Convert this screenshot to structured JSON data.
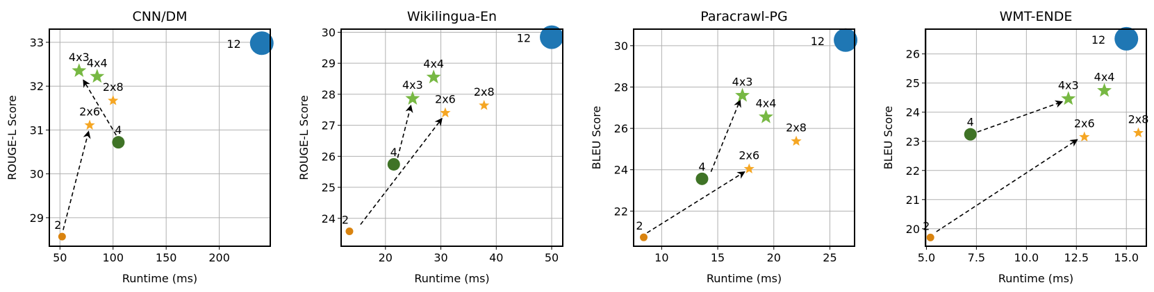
{
  "chart_data": [
    {
      "type": "scatter",
      "title": "CNN/DM",
      "xlabel": "Runtime (ms)",
      "ylabel": "ROUGE-L Score",
      "xlim": [
        40,
        248
      ],
      "ylim": [
        28.35,
        33.3
      ],
      "xticks": [
        50,
        100,
        150,
        200
      ],
      "yticks": [
        29,
        30,
        31,
        32,
        33
      ],
      "grid": true,
      "points": [
        {
          "label": "2",
          "x": 52,
          "y": 28.57,
          "kind": "dot-small"
        },
        {
          "label": "4",
          "x": 105,
          "y": 30.72,
          "kind": "dot-medium"
        },
        {
          "label": "12",
          "x": 240,
          "y": 32.98,
          "kind": "dot-large"
        },
        {
          "label": "2x6",
          "x": 78,
          "y": 31.11,
          "kind": "star-orange"
        },
        {
          "label": "2x8",
          "x": 100,
          "y": 31.67,
          "kind": "star-orange"
        },
        {
          "label": "4x3",
          "x": 68,
          "y": 32.35,
          "kind": "star-green"
        },
        {
          "label": "4x4",
          "x": 85,
          "y": 32.22,
          "kind": "star-green"
        }
      ],
      "arrows": [
        {
          "x1": 53,
          "y1": 28.72,
          "x2": 77,
          "y2": 30.97
        },
        {
          "x1": 103,
          "y1": 30.88,
          "x2": 72,
          "y2": 32.14
        }
      ]
    },
    {
      "type": "scatter",
      "title": "Wikilingua-En",
      "xlabel": "Runtime (ms)",
      "ylabel": "ROUGE-L Score",
      "xlim": [
        12,
        52
      ],
      "ylim": [
        23.1,
        30.1
      ],
      "xticks": [
        20,
        30,
        40,
        50
      ],
      "yticks": [
        24,
        25,
        26,
        27,
        28,
        29,
        30
      ],
      "grid": true,
      "points": [
        {
          "label": "2",
          "x": 13.5,
          "y": 23.58,
          "kind": "dot-small"
        },
        {
          "label": "4",
          "x": 21.5,
          "y": 25.74,
          "kind": "dot-medium"
        },
        {
          "label": "12",
          "x": 50,
          "y": 29.84,
          "kind": "dot-large"
        },
        {
          "label": "2x6",
          "x": 30.8,
          "y": 27.4,
          "kind": "star-orange"
        },
        {
          "label": "2x8",
          "x": 37.8,
          "y": 27.64,
          "kind": "star-orange"
        },
        {
          "label": "4x3",
          "x": 24.9,
          "y": 27.86,
          "kind": "star-green"
        },
        {
          "label": "4x4",
          "x": 28.7,
          "y": 28.55,
          "kind": "star-green"
        }
      ],
      "arrows": [
        {
          "x1": 15.5,
          "y1": 23.8,
          "x2": 30.2,
          "y2": 27.22
        },
        {
          "x1": 22.2,
          "y1": 25.95,
          "x2": 24.6,
          "y2": 27.64
        }
      ]
    },
    {
      "type": "scatter",
      "title": "Paracrawl-PG",
      "xlabel": "Runtime (ms)",
      "ylabel": "BLEU Score",
      "xlim": [
        7.5,
        27.2
      ],
      "ylim": [
        20.3,
        30.8
      ],
      "xticks": [
        10,
        15,
        20,
        25
      ],
      "yticks": [
        22,
        24,
        26,
        28,
        30
      ],
      "grid": true,
      "points": [
        {
          "label": "2",
          "x": 8.4,
          "y": 20.73,
          "kind": "dot-small"
        },
        {
          "label": "4",
          "x": 13.6,
          "y": 23.56,
          "kind": "dot-medium"
        },
        {
          "label": "12",
          "x": 26.4,
          "y": 30.27,
          "kind": "dot-large"
        },
        {
          "label": "2x6",
          "x": 17.8,
          "y": 24.04,
          "kind": "star-orange"
        },
        {
          "label": "2x8",
          "x": 22.0,
          "y": 25.38,
          "kind": "star-orange"
        },
        {
          "label": "4x3",
          "x": 17.2,
          "y": 27.59,
          "kind": "star-green"
        },
        {
          "label": "4x4",
          "x": 19.3,
          "y": 26.55,
          "kind": "star-green"
        }
      ],
      "arrows": [
        {
          "x1": 8.7,
          "y1": 20.95,
          "x2": 17.4,
          "y2": 23.9
        },
        {
          "x1": 14.4,
          "y1": 23.9,
          "x2": 17.0,
          "y2": 27.37
        }
      ]
    },
    {
      "type": "scatter",
      "title": "WMT-ENDE",
      "xlabel": "Runtime (ms)",
      "ylabel": "BLEU Score",
      "xlim": [
        4.95,
        16.0
      ],
      "ylim": [
        19.4,
        26.85
      ],
      "xticks": [
        5.0,
        7.5,
        10.0,
        12.5,
        15.0
      ],
      "yticks": [
        20,
        21,
        22,
        23,
        24,
        25,
        26
      ],
      "grid": true,
      "points": [
        {
          "label": "2",
          "x": 5.2,
          "y": 19.7,
          "kind": "dot-small"
        },
        {
          "label": "4",
          "x": 7.2,
          "y": 23.24,
          "kind": "dot-medium"
        },
        {
          "label": "12",
          "x": 15.0,
          "y": 26.52,
          "kind": "dot-large"
        },
        {
          "label": "2x6",
          "x": 12.9,
          "y": 23.15,
          "kind": "star-orange"
        },
        {
          "label": "2x8",
          "x": 15.6,
          "y": 23.29,
          "kind": "star-orange"
        },
        {
          "label": "4x3",
          "x": 12.1,
          "y": 24.46,
          "kind": "star-green"
        },
        {
          "label": "4x4",
          "x": 13.9,
          "y": 24.74,
          "kind": "star-green"
        }
      ],
      "arrows": [
        {
          "x1": 5.5,
          "y1": 19.9,
          "x2": 12.55,
          "y2": 23.06
        },
        {
          "x1": 7.55,
          "y1": 23.32,
          "x2": 11.8,
          "y2": 24.36
        }
      ]
    }
  ],
  "colors": {
    "dot-small": "#d9830f",
    "dot-medium": "#3f7326",
    "dot-large": "#1f77b4",
    "star-orange": "#f5a623",
    "star-green": "#77b843"
  }
}
